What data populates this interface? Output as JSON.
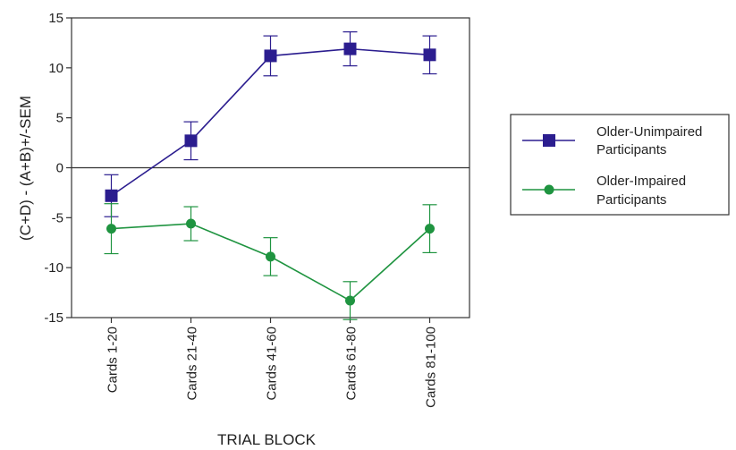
{
  "colors": {
    "older_unimpaired": "#2b1d8f",
    "older_impaired": "#1f9440",
    "axis": "#333333"
  },
  "chart_data": {
    "type": "line",
    "title": "",
    "xlabel": "TRIAL BLOCK",
    "ylabel": "(C+D) - (A+B)+/-SEM",
    "categories": [
      "Cards 1-20",
      "Cards 21-40",
      "Cards 41-60",
      "Cards 61-80",
      "Cards 81-100"
    ],
    "ylim": [
      -15,
      15
    ],
    "yticks": [
      15,
      10,
      5,
      0,
      -5,
      -10,
      -15
    ],
    "grid": false,
    "legend_position": "right",
    "series": [
      {
        "name": "Older-Unimpaired Participants",
        "marker": "square",
        "values": [
          -2.8,
          2.7,
          11.2,
          11.9,
          11.3
        ],
        "sem": [
          2.1,
          1.9,
          2.0,
          1.7,
          1.9
        ]
      },
      {
        "name": "Older-Impaired Participants",
        "marker": "circle",
        "values": [
          -6.1,
          -5.6,
          -8.9,
          -13.3,
          -6.1
        ],
        "sem": [
          2.5,
          1.7,
          1.9,
          1.9,
          2.4
        ]
      }
    ]
  },
  "legend": {
    "items": [
      {
        "line1": "Older-Unimpaired",
        "line2": "Participants"
      },
      {
        "line1": "Older-Impaired",
        "line2": "Participants"
      }
    ]
  }
}
